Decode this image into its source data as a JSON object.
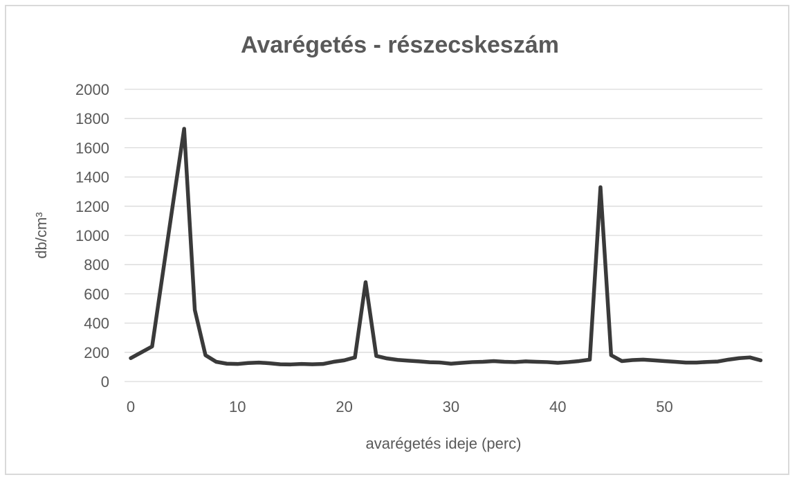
{
  "window": {
    "background": "#ffffff",
    "frame_border_color": "#d9d9d9"
  },
  "chart_data": {
    "type": "line",
    "title": "Avarégetés - részecskeszám",
    "xlabel": "avarégetés ideje (perc)",
    "ylabel": "db/cm³",
    "legend_position": "none",
    "grid": "horizontal",
    "ylim": [
      0,
      2000
    ],
    "yticks": [
      0,
      200,
      400,
      600,
      800,
      1000,
      1200,
      1400,
      1600,
      1800,
      2000
    ],
    "xticks": [
      0,
      10,
      20,
      30,
      40,
      50
    ],
    "x": [
      0,
      1,
      2,
      3,
      4,
      5,
      6,
      7,
      8,
      9,
      10,
      11,
      12,
      13,
      14,
      15,
      16,
      17,
      18,
      19,
      20,
      21,
      22,
      23,
      24,
      25,
      26,
      27,
      28,
      29,
      30,
      31,
      32,
      33,
      34,
      35,
      36,
      37,
      38,
      39,
      40,
      41,
      42,
      43,
      44,
      45,
      46,
      47,
      48,
      49,
      50,
      51,
      52,
      53,
      54,
      55,
      56,
      57,
      58,
      59
    ],
    "values": [
      160,
      200,
      240,
      740,
      1240,
      1730,
      490,
      180,
      135,
      122,
      120,
      127,
      130,
      125,
      118,
      117,
      120,
      118,
      120,
      135,
      145,
      165,
      680,
      175,
      158,
      148,
      143,
      138,
      132,
      130,
      122,
      128,
      133,
      135,
      140,
      135,
      133,
      138,
      135,
      133,
      128,
      133,
      140,
      150,
      1330,
      180,
      140,
      147,
      150,
      145,
      140,
      135,
      130,
      130,
      134,
      137,
      150,
      160,
      165,
      145
    ],
    "peaks": [
      {
        "x": 5,
        "value": 1730
      },
      {
        "x": 22,
        "value": 680
      },
      {
        "x": 44,
        "value": 1330
      }
    ],
    "line_color": "#3a3a3a",
    "line_width": 5.5,
    "grid_color": "#d9d9d9",
    "text_color": "#595959"
  }
}
